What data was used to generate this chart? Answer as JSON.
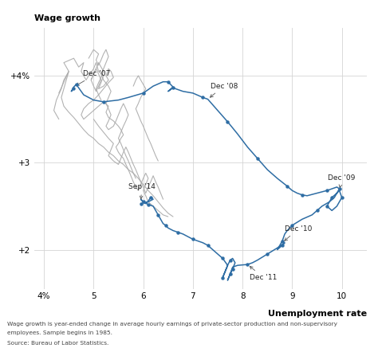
{
  "title_ylabel": "Wage growth",
  "title_xlabel": "Unemployment rate",
  "footnote1": "Wage growth is year-ended change in average hourly earnings of private-sector production and non-supervisory",
  "footnote2": "employees. Sample begins in 1985.",
  "footnote3": "Source: Bureau of Labor Statistics.",
  "xlim": [
    3.8,
    10.5
  ],
  "ylim": [
    1.55,
    4.55
  ],
  "xticks": [
    4,
    5,
    6,
    7,
    8,
    9,
    10
  ],
  "xticklabels": [
    "4%",
    "5",
    "6",
    "7",
    "8",
    "9",
    "10"
  ],
  "yticks": [
    2.0,
    3.0,
    4.0
  ],
  "yticklabels": [
    "+2",
    "+3",
    "+4%"
  ],
  "gray_color": "#aaaaaa",
  "blue_color": "#2e6da4",
  "dot_color": "#2e6da4"
}
